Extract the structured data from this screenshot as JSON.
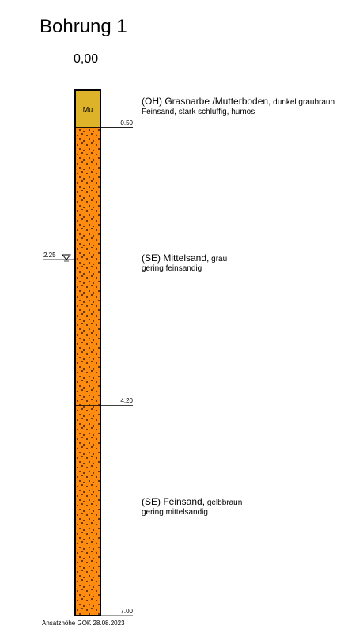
{
  "header": {
    "title": "Bohrung 1",
    "elevation": "0,00"
  },
  "colors": {
    "topsoil": "#DDB32A",
    "sand": "#FF8C10",
    "outline": "#000000"
  },
  "layers": [
    {
      "code": "Mu",
      "top": 0.0,
      "bottom": 0.5,
      "pattern": "none",
      "desc_main": "(OH) Grasnarbe /Mutterboden,",
      "desc_detail": " dunkel graubraun",
      "desc_line2": "Feinsand, stark schluffig, humos",
      "depth_label": "0.50"
    },
    {
      "code": "",
      "top": 0.5,
      "bottom": 4.2,
      "pattern": "dots",
      "desc_main": "(SE) Mittelsand,",
      "desc_detail": " grau",
      "desc_line2": "gering feinsandig",
      "depth_label": "4.20"
    },
    {
      "code": "",
      "top": 4.2,
      "bottom": 7.0,
      "pattern": "dots",
      "desc_main": "(SE) Feinsand,",
      "desc_detail": " gelbbraun",
      "desc_line2": "gering mittelsandig",
      "depth_label": "7.00"
    }
  ],
  "groundwater": {
    "depth": 2.25,
    "label": "2.25",
    "symbol": "groundwater-triangle-icon"
  },
  "total_depth": 7.0,
  "footer": "Ansatzhöhe GOK 28.08.2023"
}
